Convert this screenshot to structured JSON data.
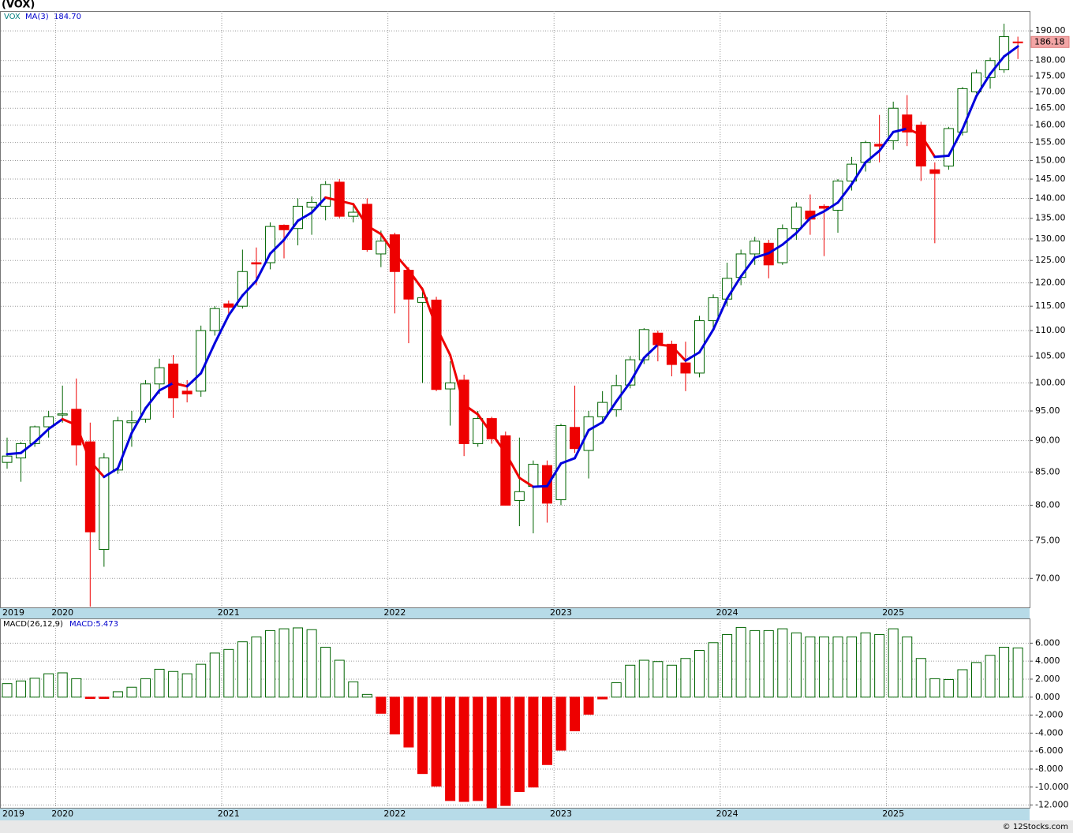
{
  "footer": "© 12Stocks.com",
  "chart_data": [
    {
      "type": "candlestick",
      "title": "(VOX)",
      "symbol": "VOX",
      "ma_name": "MA(3)",
      "ma_label": "184.70",
      "categories": [
        "2019",
        null,
        null,
        null,
        "2020",
        null,
        null,
        null,
        null,
        null,
        null,
        null,
        null,
        null,
        null,
        null,
        "2021",
        null,
        null,
        null,
        null,
        null,
        null,
        null,
        null,
        null,
        null,
        null,
        "2022",
        null,
        null,
        null,
        null,
        null,
        null,
        null,
        null,
        null,
        null,
        null,
        "2023",
        null,
        null,
        null,
        null,
        null,
        null,
        null,
        null,
        null,
        null,
        null,
        "2024",
        null,
        null,
        null,
        null,
        null,
        null,
        null,
        null,
        null,
        null,
        null,
        "2025",
        null,
        null,
        null,
        null,
        null,
        null,
        null,
        null,
        null
      ],
      "open": [
        86.5,
        87.2,
        89.5,
        92.3,
        94.3,
        95.3,
        89.8,
        73.8,
        85.3,
        93,
        93.6,
        99.8,
        103.5,
        98.5,
        98.5,
        110,
        115.5,
        115,
        124.5,
        124.5,
        133.3,
        132.5,
        137.8,
        138,
        144.2,
        135.5,
        138.5,
        126.5,
        131,
        122.8,
        115.8,
        116.3,
        98.9,
        100.5,
        89.5,
        93.7,
        90.8,
        80.7,
        82.8,
        86,
        80.8,
        92.2,
        88.4,
        94,
        95.2,
        99.6,
        104.3,
        109.5,
        107.3,
        103.7,
        101.8,
        112,
        116.5,
        121.2,
        126.5,
        129,
        124.5,
        132.5,
        136.8,
        138,
        137,
        144.5,
        149.5,
        154.5,
        155.5,
        163,
        160,
        147.5,
        148.5,
        158,
        170,
        174.5,
        177,
        186.2
      ],
      "high": [
        90.5,
        89.8,
        92.5,
        95,
        99.5,
        100.8,
        93,
        88,
        94,
        95,
        100.5,
        104.5,
        105.2,
        100.5,
        111,
        115,
        116.2,
        127.5,
        128,
        134,
        133.5,
        140,
        140.5,
        144.5,
        145,
        138,
        140,
        132,
        131.5,
        123.5,
        119,
        117,
        104,
        101.5,
        95,
        94,
        91.5,
        90.5,
        86.8,
        86.8,
        92.8,
        99.5,
        95,
        98.5,
        101.5,
        105,
        110.5,
        110,
        108,
        107.8,
        113,
        117.5,
        124.5,
        127.5,
        130.5,
        129.8,
        133.5,
        139,
        141,
        138.5,
        145,
        151,
        155.5,
        163,
        167,
        169,
        161,
        149.5,
        159.5,
        171.5,
        177,
        181,
        192.5,
        188
      ],
      "low": [
        85.5,
        83.5,
        89,
        90.5,
        93,
        86,
        66.5,
        71.5,
        84.7,
        89,
        93,
        98,
        93.8,
        96.5,
        97.5,
        109,
        113,
        114.5,
        119.5,
        123,
        125.5,
        128.5,
        131,
        134.5,
        135,
        134,
        127,
        123.5,
        113.5,
        107.5,
        100,
        98.5,
        92.5,
        87.5,
        89,
        89.5,
        80,
        77,
        76,
        77.5,
        80,
        88,
        84,
        93.3,
        94,
        99,
        103.5,
        104,
        101.2,
        98.5,
        101,
        110,
        115,
        119.5,
        124,
        121,
        124,
        129.8,
        131,
        126,
        131.5,
        142,
        147,
        149.5,
        153,
        154,
        144.5,
        129,
        147.5,
        157,
        169.5,
        171,
        176,
        180.5
      ],
      "close": [
        87.5,
        89.5,
        92.3,
        94,
        94.5,
        89.3,
        76.2,
        87.2,
        93.3,
        93.3,
        99.8,
        102.8,
        97.3,
        98,
        110,
        114.5,
        114.8,
        122.5,
        124.2,
        133,
        132.2,
        138,
        139,
        143.6,
        135.5,
        136.5,
        127.5,
        129.5,
        122.5,
        116.5,
        116.8,
        98.8,
        100,
        89.5,
        93.7,
        90.3,
        80,
        82,
        86.2,
        80.3,
        92.5,
        88.7,
        94,
        96.5,
        99.5,
        104.3,
        110.2,
        107.2,
        103.4,
        101.8,
        112,
        116.8,
        121,
        126.5,
        129.5,
        124,
        132.5,
        137.8,
        134.8,
        137.5,
        144.5,
        149,
        155,
        154,
        165,
        158,
        148.5,
        146.5,
        159,
        171,
        176,
        180,
        188,
        186.18
      ],
      "ma": [
        87.8,
        88,
        89.77,
        91.93,
        93.6,
        92.6,
        86.67,
        84.23,
        85.57,
        91.27,
        95.47,
        98.63,
        99.97,
        99.37,
        101.77,
        107.5,
        113.1,
        117.27,
        120.5,
        126.57,
        129.8,
        134.4,
        136.4,
        140.2,
        139.37,
        138.53,
        133.17,
        131.17,
        126.5,
        122.83,
        118.6,
        110.7,
        105.2,
        96.1,
        94.4,
        91.17,
        88,
        84.1,
        82.73,
        82.83,
        86.33,
        87.17,
        91.73,
        93.07,
        96.67,
        100.1,
        104.67,
        107.23,
        106.93,
        104.13,
        105.73,
        110.2,
        116.6,
        121.43,
        125.67,
        126.67,
        128.67,
        131.43,
        135.03,
        136.7,
        138.93,
        143.67,
        149.5,
        152.67,
        158,
        159,
        157.17,
        151,
        151.33,
        158.83,
        168.67,
        175.67,
        181.33,
        184.7
      ],
      "log_scale": true,
      "grid": true,
      "ylim": [
        66.4,
        197
      ],
      "yticks": [
        {
          "value": 70,
          "label": "70.00"
        },
        {
          "value": 75,
          "label": "75.00"
        },
        {
          "value": 80,
          "label": "80.00"
        },
        {
          "value": 85,
          "label": "85.00"
        },
        {
          "value": 90,
          "label": "90.00"
        },
        {
          "value": 95,
          "label": "95.00"
        },
        {
          "value": 100,
          "label": "100.00"
        },
        {
          "value": 105,
          "label": "105.00"
        },
        {
          "value": 110,
          "label": "110.00"
        },
        {
          "value": 115,
          "label": "115.00"
        },
        {
          "value": 120,
          "label": "120.00"
        },
        {
          "value": 125,
          "label": "125.00"
        },
        {
          "value": 130,
          "label": "130.00"
        },
        {
          "value": 135,
          "label": "135.00"
        },
        {
          "value": 140,
          "label": "140.00"
        },
        {
          "value": 145,
          "label": "145.00"
        },
        {
          "value": 150,
          "label": "150.00"
        },
        {
          "value": 155,
          "label": "155.00"
        },
        {
          "value": 160,
          "label": "160.00"
        },
        {
          "value": 165,
          "label": "165.00"
        },
        {
          "value": 170,
          "label": "170.00"
        },
        {
          "value": 175,
          "label": "175.00"
        },
        {
          "value": 180,
          "label": "180.00"
        },
        {
          "value": 190,
          "label": "190.00"
        }
      ],
      "up_color": "#006400",
      "down_color": "#ee0000",
      "ma_up_color": "#0000dd",
      "ma_down_color": "#ee0000"
    },
    {
      "type": "bar",
      "title": "MACD(26,12,9)",
      "value_label": "MACD:5.473",
      "categories": [
        "2019",
        null,
        null,
        null,
        "2020",
        null,
        null,
        null,
        null,
        null,
        null,
        null,
        null,
        null,
        null,
        null,
        "2021",
        null,
        null,
        null,
        null,
        null,
        null,
        null,
        null,
        null,
        null,
        null,
        "2022",
        null,
        null,
        null,
        null,
        null,
        null,
        null,
        null,
        null,
        null,
        null,
        "2023",
        null,
        null,
        null,
        null,
        null,
        null,
        null,
        null,
        null,
        null,
        null,
        "2024",
        null,
        null,
        null,
        null,
        null,
        null,
        null,
        null,
        null,
        null,
        null,
        "2025",
        null,
        null,
        null,
        null,
        null,
        null,
        null,
        null,
        null
      ],
      "values": [
        1.5,
        1.8,
        2.1,
        2.6,
        2.7,
        2.05,
        -0.15,
        -0.15,
        0.6,
        1.1,
        2.05,
        3.1,
        2.85,
        2.6,
        3.65,
        4.9,
        5.3,
        6.15,
        6.7,
        7.4,
        7.6,
        7.7,
        7.5,
        5.55,
        4.1,
        1.7,
        0.3,
        -1.8,
        -4.1,
        -5.55,
        -8.5,
        -9.9,
        -11.5,
        -11.6,
        -11.5,
        -12.3,
        -12.05,
        -10.5,
        -10,
        -7.5,
        -5.9,
        -3.75,
        -1.9,
        -0.2,
        1.6,
        3.55,
        4.1,
        3.95,
        3.55,
        4.3,
        5.2,
        6.05,
        6.95,
        7.75,
        7.4,
        7.4,
        7.6,
        7.15,
        6.7,
        6.7,
        6.7,
        6.7,
        7.15,
        6.95,
        7.6,
        6.7,
        4.3,
        2.05,
        1.95,
        3.05,
        3.85,
        4.65,
        5.55,
        5.473
      ],
      "grid": true,
      "ylim": [
        -12.3,
        8.75
      ],
      "yticks": [
        {
          "value": 6,
          "label": "6.000"
        },
        {
          "value": 4,
          "label": "4.000"
        },
        {
          "value": 2,
          "label": "2.000"
        },
        {
          "value": 0,
          "label": "0.000"
        },
        {
          "value": -2,
          "label": "-2.000"
        },
        {
          "value": -4,
          "label": "-4.000"
        },
        {
          "value": -6,
          "label": "-6.000"
        },
        {
          "value": -8,
          "label": "-8.000"
        },
        {
          "value": -10,
          "label": "-10.000"
        },
        {
          "value": -12,
          "label": "-12.000"
        }
      ],
      "up_color": "#006400",
      "down_color": "#ee0000"
    }
  ]
}
